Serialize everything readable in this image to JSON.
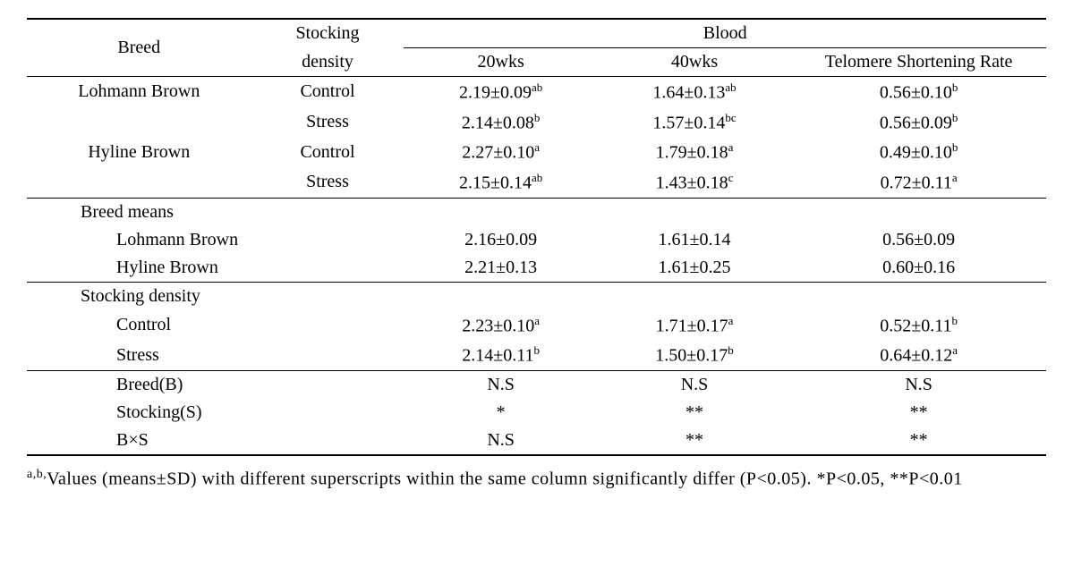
{
  "headers": {
    "breed": "Breed",
    "density": "Stocking density",
    "blood": "Blood",
    "w20": "20wks",
    "w40": "40wks",
    "tsr": "Telomere Shortening Rate"
  },
  "rows": {
    "lb_name": "Lohmann Brown",
    "lb_c_density": "Control",
    "lb_c_20": "2.19±0.09",
    "lb_c_20_sup": "ab",
    "lb_c_40": "1.64±0.13",
    "lb_c_40_sup": "ab",
    "lb_c_tsr": "0.56±0.10",
    "lb_c_tsr_sup": "b",
    "lb_s_density": "Stress",
    "lb_s_20": "2.14±0.08",
    "lb_s_20_sup": "b",
    "lb_s_40": "1.57±0.14",
    "lb_s_40_sup": "bc",
    "lb_s_tsr": "0.56±0.09",
    "lb_s_tsr_sup": "b",
    "hb_name": "Hyline Brown",
    "hb_c_density": "Control",
    "hb_c_20": "2.27±0.10",
    "hb_c_20_sup": "a",
    "hb_c_40": "1.79±0.18",
    "hb_c_40_sup": "a",
    "hb_c_tsr": "0.49±0.10",
    "hb_c_tsr_sup": "b",
    "hb_s_density": "Stress",
    "hb_s_20": "2.15±0.14",
    "hb_s_20_sup": "ab",
    "hb_s_40": "1.43±0.18",
    "hb_s_40_sup": "c",
    "hb_s_tsr": "0.72±0.11",
    "hb_s_tsr_sup": "a"
  },
  "breed_means": {
    "label": "Breed means",
    "lb_label": "Lohmann Brown",
    "lb_20": "2.16±0.09",
    "lb_40": "1.61±0.14",
    "lb_tsr": "0.56±0.09",
    "hb_label": "Hyline Brown",
    "hb_20": "2.21±0.13",
    "hb_40": "1.61±0.25",
    "hb_tsr": "0.60±0.16"
  },
  "density_means": {
    "label": "Stocking density",
    "c_label": "Control",
    "c_20": "2.23±0.10",
    "c_20_sup": "a",
    "c_40": "1.71±0.17",
    "c_40_sup": "a",
    "c_tsr": "0.52±0.11",
    "c_tsr_sup": "b",
    "s_label": "Stress",
    "s_20": "2.14±0.11",
    "s_20_sup": "b",
    "s_40": "1.50±0.17",
    "s_40_sup": "b",
    "s_tsr": "0.64±0.12",
    "s_tsr_sup": "a"
  },
  "effects": {
    "breed_label": "Breed(B)",
    "breed_20": "N.S",
    "breed_40": "N.S",
    "breed_tsr": "N.S",
    "stock_label": "Stocking(S)",
    "stock_20": "*",
    "stock_40": "**",
    "stock_tsr": "**",
    "bxs_label": "B×S",
    "bxs_20": "N.S",
    "bxs_40": "**",
    "bxs_tsr": "**"
  },
  "footnote": {
    "sup": "a,b,",
    "text": "Values (means±SD) with different superscripts within the same column significantly differ (P<0.05). *P<0.05, **P<0.01"
  }
}
